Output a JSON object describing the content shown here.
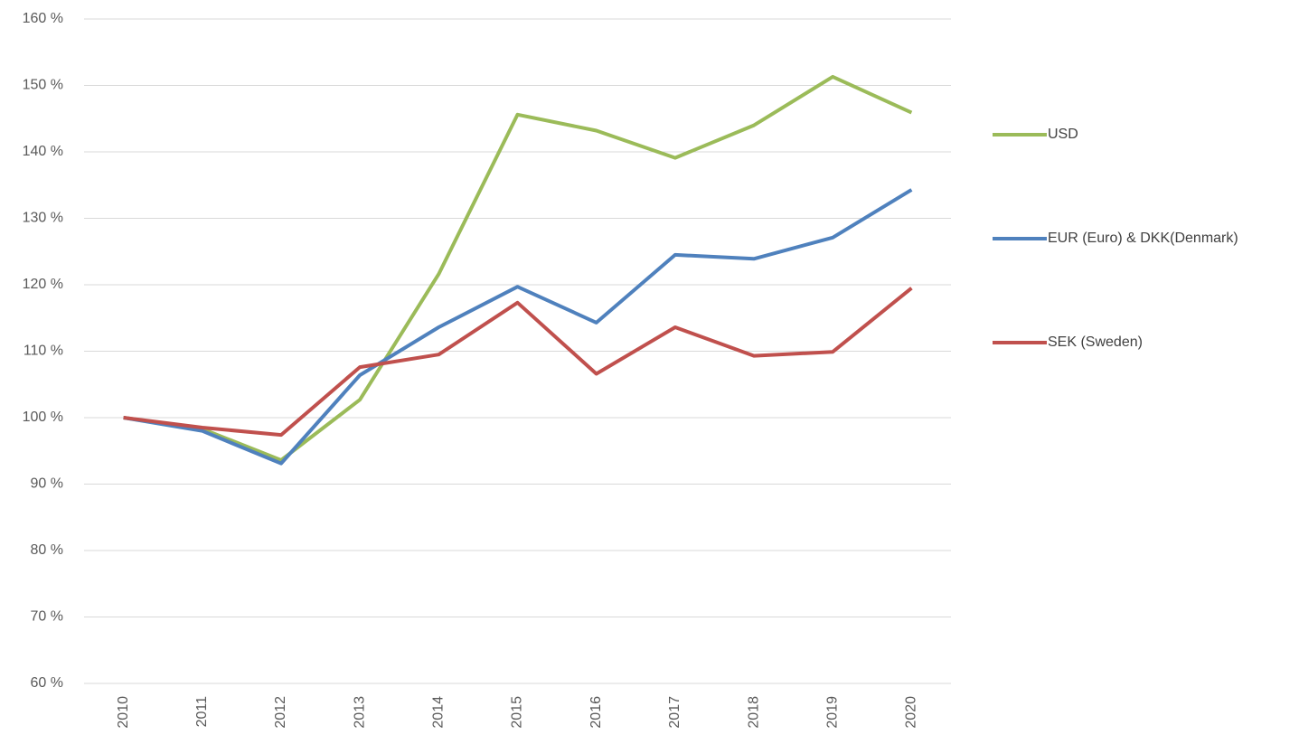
{
  "chart_data": {
    "type": "line",
    "categories": [
      "2010",
      "2011",
      "2012",
      "2013",
      "2014",
      "2015",
      "2016",
      "2017",
      "2018",
      "2019",
      "2020"
    ],
    "series": [
      {
        "name": "USD",
        "color": "#9bbb59",
        "values": [
          100,
          98.3,
          93.6,
          102.7,
          121.6,
          145.6,
          143.2,
          139.1,
          144.0,
          151.3,
          145.9
        ]
      },
      {
        "name": "EUR (Euro) & DKK(Denmark)",
        "color": "#4f81bd",
        "values": [
          100,
          98.0,
          93.1,
          106.4,
          113.6,
          119.7,
          114.3,
          124.5,
          123.9,
          127.1,
          134.3
        ]
      },
      {
        "name": "SEK (Sweden)",
        "color": "#c0504d",
        "values": [
          100,
          98.5,
          97.4,
          107.6,
          109.5,
          117.3,
          106.6,
          113.6,
          109.3,
          109.9,
          119.5
        ]
      }
    ],
    "ylim": [
      60,
      160
    ],
    "yticks": [
      {
        "value": 60,
        "label": "60 %"
      },
      {
        "value": 70,
        "label": "70 %"
      },
      {
        "value": 80,
        "label": "80 %"
      },
      {
        "value": 90,
        "label": "90 %"
      },
      {
        "value": 100,
        "label": "100 %"
      },
      {
        "value": 110,
        "label": "110 %"
      },
      {
        "value": 120,
        "label": "120 %"
      },
      {
        "value": 130,
        "label": "130 %"
      },
      {
        "value": 140,
        "label": "140 %"
      },
      {
        "value": 150,
        "label": "150 %"
      },
      {
        "value": 160,
        "label": "160 %"
      }
    ],
    "grid": true,
    "legend": "right"
  }
}
